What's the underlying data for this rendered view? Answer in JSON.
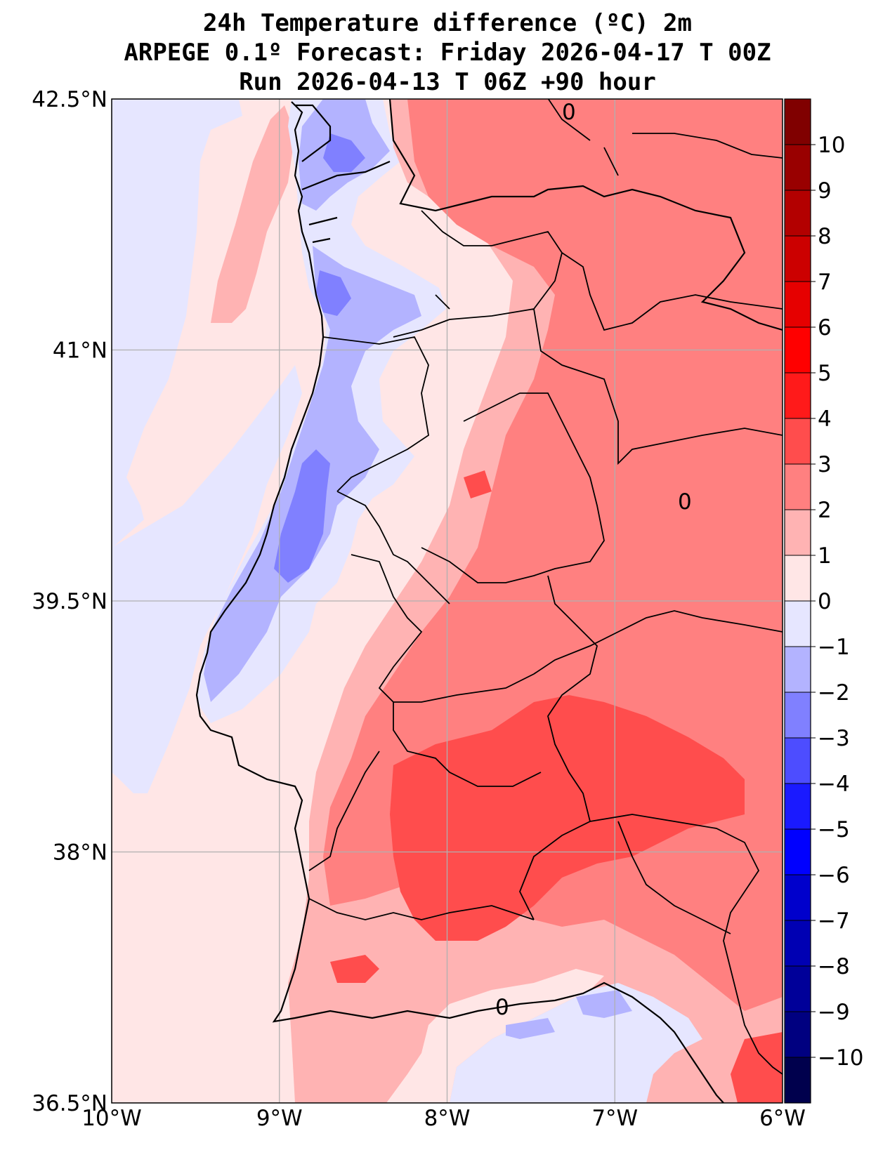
{
  "title": {
    "line1": "24h Temperature difference (ºC) 2m",
    "line2": "ARPEGE 0.1º Forecast: Friday 2026-04-17 T 00Z",
    "line3": "Run 2026-04-13 T 06Z +90 hour"
  },
  "map": {
    "lon_range": [
      -10,
      -6
    ],
    "lat_range": [
      36.5,
      42.5
    ],
    "lon_ticks": [
      {
        "value": -10,
        "label": "10°W"
      },
      {
        "value": -9,
        "label": "9°W"
      },
      {
        "value": -8,
        "label": "8°W"
      },
      {
        "value": -7,
        "label": "7°W"
      },
      {
        "value": -6,
        "label": "6°W"
      }
    ],
    "lat_ticks": [
      {
        "value": 42.5,
        "label": "42.5°N"
      },
      {
        "value": 41,
        "label": "41°N"
      },
      {
        "value": 39.5,
        "label": "39.5°N"
      },
      {
        "value": 38,
        "label": "38°N"
      },
      {
        "value": 36.5,
        "label": "36.5°N"
      }
    ],
    "grid": true,
    "zero_contour_label": "0"
  },
  "colorbar": {
    "range": [
      -11,
      11
    ],
    "ticks": [
      "10",
      "9",
      "8",
      "7",
      "6",
      "5",
      "4",
      "3",
      "2",
      "1",
      "0",
      "−1",
      "−2",
      "−3",
      "−4",
      "−5",
      "−6",
      "−7",
      "−8",
      "−9",
      "−10"
    ],
    "tick_values": [
      10,
      9,
      8,
      7,
      6,
      5,
      4,
      3,
      2,
      1,
      0,
      -1,
      -2,
      -3,
      -4,
      -5,
      -6,
      -7,
      -8,
      -9,
      -10
    ],
    "colors_top_to_bottom": [
      "#800000",
      "#990000",
      "#b30000",
      "#cc0000",
      "#e60000",
      "#ff0000",
      "#ff1a1a",
      "#ff4d4d",
      "#ff8080",
      "#ffb3b3",
      "#ffe6e6",
      "#e6e6ff",
      "#b3b3ff",
      "#8080ff",
      "#4d4dff",
      "#1a1aff",
      "#0000ff",
      "#0000cc",
      "#0000b3",
      "#000099",
      "#000080",
      "#00004d"
    ]
  },
  "colors": {
    "warm_0_1": "#ffe6e6",
    "warm_1_2": "#ffb3b3",
    "warm_2_3": "#ff8080",
    "warm_3_4": "#ff4d4d",
    "cool_0_1": "#e6e6ff",
    "cool_1_2": "#b3b3ff",
    "cool_2_3": "#8080ff",
    "border": "#000000",
    "grid": "#b0b0b0"
  }
}
